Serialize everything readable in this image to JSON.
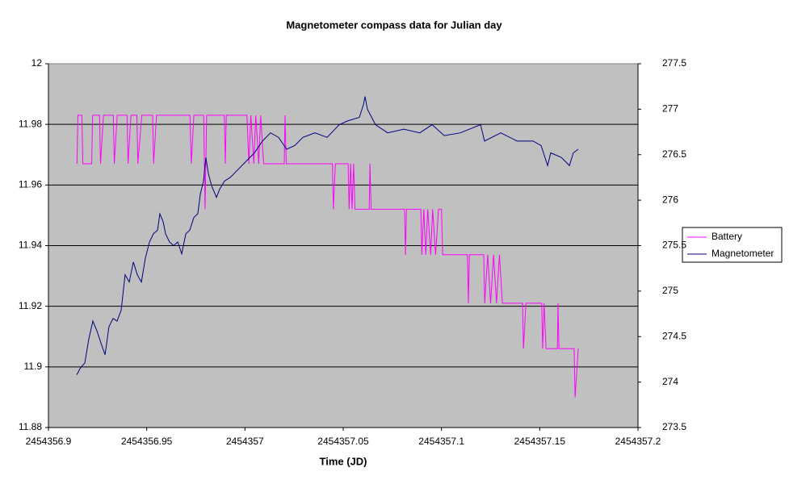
{
  "chart_data": {
    "type": "line",
    "title": "Magnetometer compass data for Julian day",
    "x_label": "Time (JD)",
    "xlim": [
      2454356.9,
      2454357.2
    ],
    "xticks": [
      2454356.9,
      2454356.95,
      2454357,
      2454357.05,
      2454357.1,
      2454357.15,
      2454357.2
    ],
    "ylim": [
      11.88,
      12
    ],
    "yticks": [
      11.88,
      11.9,
      11.92,
      11.94,
      11.96,
      11.98,
      12
    ],
    "y2lim": [
      273.5,
      277.5
    ],
    "y2ticks": [
      273.5,
      274,
      274.5,
      275,
      275.5,
      276,
      276.5,
      277,
      277.5
    ],
    "grid": true,
    "legend": "right",
    "series": [
      {
        "name": "Battery",
        "color": "#ff00ff",
        "axis": "y",
        "x": [
          2454356.9145,
          2454356.915,
          2454356.917,
          2454356.9175,
          2454356.922,
          2454356.9225,
          2454356.926,
          2454356.9265,
          2454356.928,
          2454356.933,
          2454356.9335,
          2454356.935,
          2454356.94,
          2454356.9405,
          2454356.942,
          2454356.945,
          2454356.9455,
          2454356.9475,
          2454356.953,
          2454356.9535,
          2454356.955,
          2454356.972,
          2454356.9727,
          2454356.974,
          2454356.979,
          2454356.9797,
          2454356.9805,
          2454356.9895,
          2454356.99,
          2454356.9905,
          2454357.001,
          2454357.002,
          2454357.003,
          2454357.0045,
          2454357.0055,
          2454357.007,
          2454357.008,
          2454357.0095,
          2454357.02,
          2454357.0204,
          2454357.021,
          2454357.0445,
          2454357.045,
          2454357.046,
          2454357.0525,
          2454357.053,
          2454357.0538,
          2454357.0545,
          2454357.0553,
          2454357.056,
          2454357.0632,
          2454357.0636,
          2454357.0642,
          2454357.0812,
          2454357.0817,
          2454357.0822,
          2454357.0895,
          2454357.09,
          2454357.091,
          2454357.092,
          2454357.093,
          2454357.0945,
          2454357.0955,
          2454357.097,
          2454357.0985,
          2454357.1,
          2454357.1006,
          2454357.1132,
          2454357.1137,
          2454357.1142,
          2454357.1215,
          2454357.122,
          2454357.1235,
          2454357.125,
          2454357.1265,
          2454357.128,
          2454357.1295,
          2454357.131,
          2454357.1413,
          2454357.1417,
          2454357.143,
          2454357.151,
          2454357.1515,
          2454357.1522,
          2454357.1532,
          2454357.159,
          2454357.1593,
          2454357.1598,
          2454357.1675,
          2454357.168,
          2454357.1696
        ],
        "values": [
          11.967,
          11.983,
          11.983,
          11.967,
          11.967,
          11.983,
          11.983,
          11.967,
          11.983,
          11.983,
          11.967,
          11.983,
          11.983,
          11.967,
          11.983,
          11.983,
          11.967,
          11.983,
          11.983,
          11.967,
          11.983,
          11.983,
          11.967,
          11.983,
          11.983,
          11.952,
          11.983,
          11.983,
          11.967,
          11.983,
          11.983,
          11.967,
          11.983,
          11.967,
          11.983,
          11.967,
          11.983,
          11.967,
          11.967,
          11.983,
          11.967,
          11.967,
          11.952,
          11.967,
          11.967,
          11.952,
          11.967,
          11.952,
          11.967,
          11.952,
          11.952,
          11.967,
          11.952,
          11.952,
          11.937,
          11.952,
          11.952,
          11.937,
          11.952,
          11.937,
          11.952,
          11.937,
          11.952,
          11.937,
          11.952,
          11.952,
          11.937,
          11.937,
          11.921,
          11.937,
          11.937,
          11.921,
          11.937,
          11.921,
          11.937,
          11.921,
          11.937,
          11.921,
          11.921,
          11.906,
          11.921,
          11.921,
          11.906,
          11.921,
          11.906,
          11.906,
          11.921,
          11.906,
          11.906,
          11.89,
          11.906
        ]
      },
      {
        "name": "Magnetometer",
        "color": "#000080",
        "axis": "y2",
        "x": [
          2454356.9144,
          2454356.9164,
          2454356.9185,
          2454356.9205,
          2454356.9226,
          2454356.9247,
          2454356.9267,
          2454356.9288,
          2454356.9308,
          2454356.9329,
          2454356.9349,
          2454356.937,
          2454356.939,
          2454356.9411,
          2454356.9432,
          2454356.9452,
          2454356.9473,
          2454356.9493,
          2454356.9514,
          2454356.9534,
          2454356.9555,
          2454356.9567,
          2454356.9584,
          2454356.9596,
          2454356.9616,
          2454356.9637,
          2454356.9658,
          2454356.9678,
          2454356.9699,
          2454356.9719,
          2454356.974,
          2454356.976,
          2454356.9773,
          2454356.9789,
          2454356.9801,
          2454356.9814,
          2454356.983,
          2454356.9855,
          2454356.9871,
          2454356.9896,
          2454356.9925,
          2454356.9966,
          2454357.0007,
          2454357.0048,
          2454357.0089,
          2454357.013,
          2454357.0171,
          2454357.0212,
          2454357.0253,
          2454357.0295,
          2454357.0356,
          2454357.0418,
          2454357.048,
          2454357.0521,
          2454357.0582,
          2454357.0603,
          2454357.0611,
          2454357.0623,
          2454357.0664,
          2454357.0726,
          2454357.0808,
          2454357.089,
          2454357.0952,
          2454357.1014,
          2454357.1096,
          2454357.1199,
          2454357.1219,
          2454357.1302,
          2454357.1384,
          2454357.1466,
          2454357.1507,
          2454357.154,
          2454357.1556,
          2454357.161,
          2454357.1651,
          2454357.1671,
          2454357.1696
        ],
        "values": [
          274.08,
          274.16,
          274.21,
          274.47,
          274.67,
          274.56,
          274.43,
          274.3,
          274.61,
          274.7,
          274.67,
          274.79,
          275.18,
          275.1,
          275.32,
          275.18,
          275.1,
          275.36,
          275.54,
          275.63,
          275.67,
          275.85,
          275.76,
          275.63,
          275.54,
          275.5,
          275.54,
          275.41,
          275.63,
          275.67,
          275.81,
          275.85,
          276.07,
          276.21,
          276.47,
          276.29,
          276.16,
          276.03,
          276.12,
          276.21,
          276.25,
          276.34,
          276.43,
          276.52,
          276.65,
          276.74,
          276.69,
          276.56,
          276.6,
          276.69,
          276.74,
          276.69,
          276.83,
          276.87,
          276.91,
          277.05,
          277.14,
          277,
          276.83,
          276.74,
          276.78,
          276.74,
          276.83,
          276.71,
          276.74,
          276.83,
          276.65,
          276.74,
          276.65,
          276.65,
          276.6,
          276.38,
          276.52,
          276.47,
          276.38,
          276.52,
          276.56
        ]
      }
    ]
  }
}
